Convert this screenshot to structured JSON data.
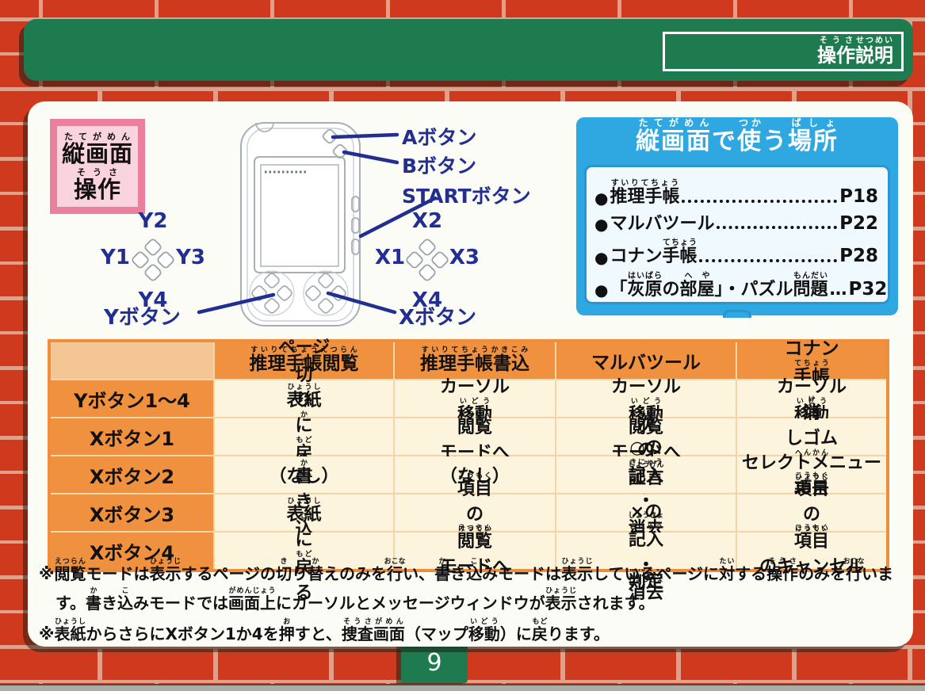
{
  "header": {
    "tag_label": "操作{そうさ}説明{せつめい}"
  },
  "badge": {
    "line1": "縦画面{たてがめん}",
    "line2": "操作{そうさ}"
  },
  "console": {
    "labels": {
      "a": "Aボタン",
      "b": "Bボタン",
      "start": "STARTボタン",
      "x": "Xボタン",
      "y": "Yボタン",
      "x1": "X1",
      "x2": "X2",
      "x3": "X3",
      "x4": "X4",
      "y1": "Y1",
      "y2": "Y2",
      "y3": "Y3",
      "y4": "Y4"
    }
  },
  "usage_box": {
    "title": "縦画面{たてがめん}で使{つか}う場所{ばしょ}",
    "bullet": "●",
    "items": [
      {
        "label": "推理手帳{すいりてちょう}",
        "dots": "",
        "page": "P18"
      },
      {
        "label": "マルバツール",
        "dots": "",
        "page": "P22"
      },
      {
        "label": "コナン手帳{てちょう}",
        "dots": "",
        "page": "P28"
      },
      {
        "label": "「灰原{はいばら}の部屋{へや}」・パズル問題{もんだい}",
        "dots": "…",
        "page": "P32"
      }
    ]
  },
  "table": {
    "col_headers": [
      "",
      "推理手帳閲覧{すいりてちょうえつらん}",
      "推理手帳書込{すいりてちょうかきこみ}",
      "マルバツール",
      "コナン手帳{てちょう}"
    ],
    "rows": [
      {
        "label": "Yボタン1～4",
        "cells": [
          "ページ切{き}り替{か}え",
          "カーソル移動{いどう}",
          "カーソル移動{いどう}",
          "カーソル移動{いどう}"
        ]
      },
      {
        "label": "Xボタン1",
        "cells": [
          "表紙{ひょうし}に戻{もど}る",
          "閲覧{えつらん}モードへ",
          "閲覧{えつらん}モードへ",
          "消{け}しゴム変換{へんかん}"
        ]
      },
      {
        "label": "Xボタン2",
        "cells": [
          "（なし）",
          "（なし）",
          "次{つぎ}の証言{しょうげん}を表示{ひょうじ}",
          "セレクトメニュー表示{ひょうじ}"
        ]
      },
      {
        "label": "Xボタン3",
        "cells": [
          "書{か}き込{こ}みモードへ",
          "項目{こうもく}の決定{けってい}",
          "○の記入{きにゅう}・消去{しょうきょ}・判定{はんてい}",
          "項目{こうもく}の決定{けってい}"
        ]
      },
      {
        "label": "Xボタン4",
        "cells": [
          "表紙{ひょうし}に戻{もど}る",
          "閲覧{えつらん}モードへ",
          "×の記入{きにゅう}・消去{しょうきょ}",
          "項目{こうもく}のキャンセル"
        ]
      }
    ]
  },
  "notes": [
    "※閲覧{えつらん}モードは表示{ひょうじ}するページの切{き}り替{か}えのみを行{おこな}い、書{か}き込{こ}みモードは表示{ひょうじ}しているページに対{たい}する操作{そうさ}のみを行{おこな}います。書{か}き込{こ}みモードでは画面上{がめんじょう}にカーソルとメッセージウィンドウが表示{ひょうじ}されます。",
    "※表紙{ひょうし}からさらにXボタン1か4を押{お}すと、捜査画面{そうさがめん}（マップ移動{いどう}）に戻{もど}ります。"
  ],
  "page": {
    "number": "9"
  },
  "colors": {
    "brick_red": "#cf3a1f",
    "mortar": "#e0a08a",
    "banner_green": "#1e7b4f",
    "label_navy": "#222f91",
    "box_blue": "#2fa7e0",
    "table_orange": "#f0913f",
    "table_peach": "#f3c693",
    "table_cream": "#fcf4dd",
    "badge_pink": "#ea7f9e"
  }
}
